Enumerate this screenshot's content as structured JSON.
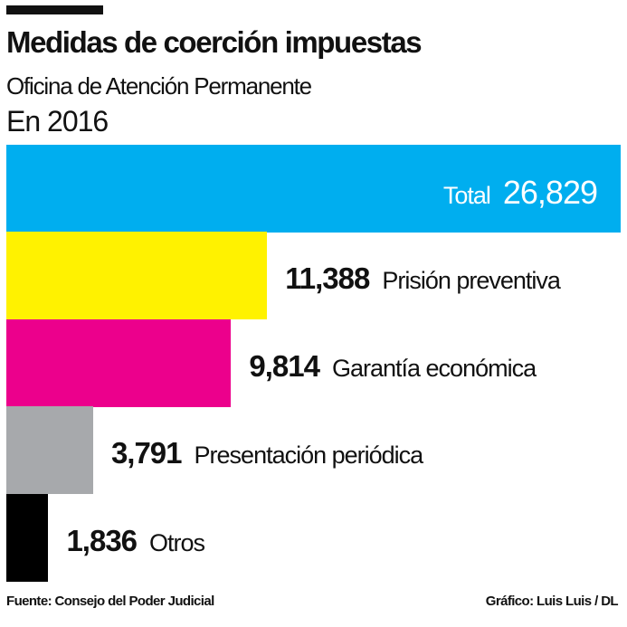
{
  "title": "Medidas de coerción impuestas",
  "subtitle": "Oficina de Atención Permanente",
  "year": "En 2016",
  "source": "Fuente: Consejo del Poder Judicial",
  "credit": "Gráfico: Luis Luis / DL",
  "chart_data": {
    "type": "bar",
    "orientation": "horizontal",
    "title": "Medidas de coerción impuestas",
    "subtitle": "Oficina de Atención Permanente",
    "categories": [
      "Total",
      "Prisión preventiva",
      "Garantía económica",
      "Presentación periódica",
      "Otros"
    ],
    "values": [
      26829,
      11388,
      9814,
      3791,
      1836
    ],
    "value_labels": [
      "26,829",
      "11,388",
      "9,814",
      "3,791",
      "1,836"
    ],
    "colors": [
      "#00AEEF",
      "#FFF200",
      "#EC008C",
      "#A7A9AC",
      "#000000"
    ],
    "xlim": [
      0,
      26829
    ],
    "grid": false
  }
}
